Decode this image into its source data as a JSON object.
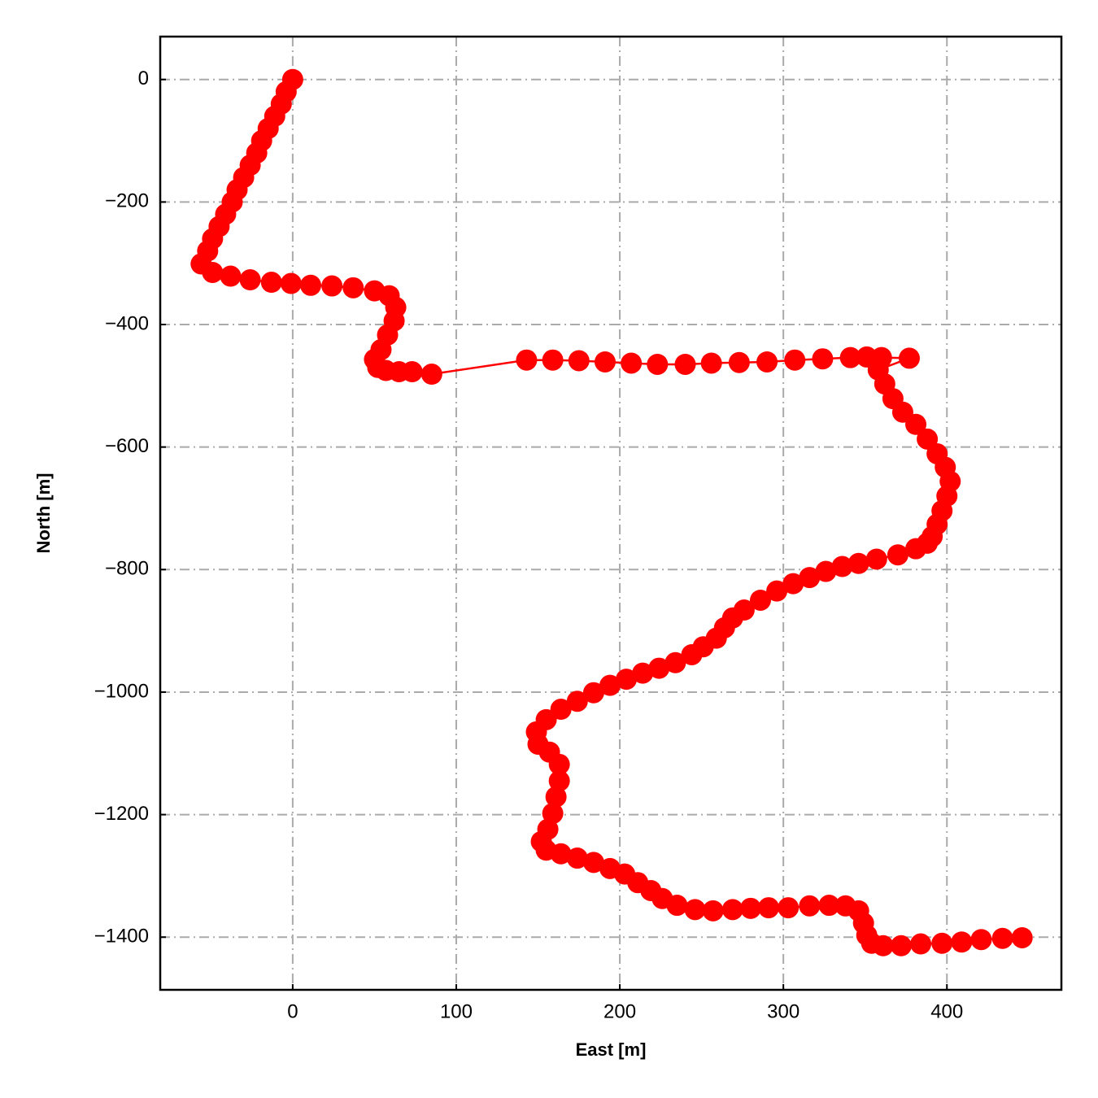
{
  "chart_data": {
    "type": "line",
    "xlabel": "East [m]",
    "ylabel": "North [m]",
    "color": "#ff0000",
    "marker": "circle",
    "grid": true,
    "xlim": [
      -81,
      470
    ],
    "ylim": [
      -1486,
      70
    ],
    "xticks": [
      0,
      100,
      200,
      300,
      400
    ],
    "yticks": [
      0,
      {
        "value": -200,
        "label": "−200"
      },
      {
        "value": -400,
        "label": "−400"
      },
      {
        "value": -600,
        "label": "−600"
      },
      {
        "value": -800,
        "label": "−800"
      },
      {
        "value": -1000,
        "label": "−1000"
      },
      {
        "value": -1200,
        "label": "−1200"
      },
      {
        "value": -1400,
        "label": "−1400"
      }
    ],
    "x": [
      0,
      -4,
      -7,
      -11,
      -15,
      -19,
      -22,
      -26,
      -30,
      -34,
      -37,
      -41,
      -45,
      -49,
      -52,
      -56,
      -49,
      -38,
      -26,
      -13,
      -1,
      11,
      24,
      37,
      50,
      59,
      63,
      62,
      58,
      54,
      50,
      52,
      57,
      65,
      73,
      85,
      143,
      159,
      175,
      191,
      207,
      223,
      240,
      256,
      273,
      290,
      307,
      324,
      341,
      351,
      360,
      377,
      358,
      362,
      367,
      373,
      381,
      388,
      394,
      399,
      402,
      400,
      397,
      394,
      391,
      388,
      381,
      370,
      357,
      346,
      336,
      326,
      316,
      306,
      296,
      286,
      276,
      269,
      264,
      259,
      251,
      244,
      234,
      224,
      214,
      204,
      194,
      184,
      174,
      164,
      155,
      149,
      150,
      157,
      163,
      163,
      161,
      159,
      156,
      152,
      155,
      164,
      174,
      184,
      194,
      203,
      211,
      219,
      226,
      235,
      246,
      257,
      269,
      280,
      291,
      303,
      316,
      328,
      338,
      346,
      349,
      351,
      354,
      361,
      372,
      384,
      397,
      409,
      421,
      434,
      446
    ],
    "values": [
      0,
      -20,
      -40,
      -60,
      -80,
      -100,
      -120,
      -140,
      -160,
      -180,
      -200,
      -220,
      -240,
      -260,
      -280,
      -301,
      -315,
      -321,
      -327,
      -331,
      -333,
      -336,
      -337,
      -340,
      -345,
      -353,
      -372,
      -394,
      -417,
      -441,
      -457,
      -470,
      -475,
      -477,
      -477,
      -481,
      -458,
      -458,
      -459,
      -461,
      -463,
      -465,
      -465,
      -463,
      -462,
      -461,
      -458,
      -456,
      -454,
      -453,
      -454,
      -455,
      -474,
      -497,
      -521,
      -543,
      -563,
      -587,
      -611,
      -633,
      -656,
      -680,
      -704,
      -726,
      -746,
      -757,
      -766,
      -776,
      -783,
      -790,
      -795,
      -803,
      -813,
      -823,
      -835,
      -850,
      -866,
      -879,
      -895,
      -912,
      -926,
      -939,
      -952,
      -961,
      -969,
      -979,
      -989,
      -1001,
      -1015,
      -1028,
      -1045,
      -1065,
      -1085,
      -1098,
      -1118,
      -1145,
      -1171,
      -1198,
      -1224,
      -1244,
      -1258,
      -1264,
      -1271,
      -1278,
      -1288,
      -1297,
      -1311,
      -1324,
      -1337,
      -1348,
      -1355,
      -1357,
      -1355,
      -1353,
      -1352,
      -1352,
      -1349,
      -1348,
      -1349,
      -1357,
      -1377,
      -1397,
      -1410,
      -1414,
      -1414,
      -1411,
      -1410,
      -1408,
      -1404,
      -1402,
      -1401
    ]
  }
}
